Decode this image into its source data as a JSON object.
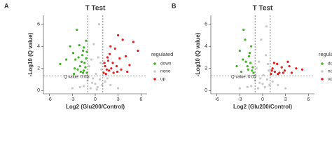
{
  "chart_data": [
    {
      "type": "scatter",
      "panel_label": "A",
      "title": "T Test",
      "x_label": "Log2 (Glu200/Control)",
      "y_label": "-Log10 (Q value)",
      "xlim": [
        -6.8,
        6.8
      ],
      "ylim": [
        -0.3,
        6.8
      ],
      "xticks": [
        -6,
        -3,
        0,
        3,
        6
      ],
      "yticks": [
        0,
        2,
        4,
        6
      ],
      "vlines": [
        -1,
        1
      ],
      "hline": 1.3,
      "annotation": "Q value: 0.05",
      "legend_title": "regulated",
      "series": [
        {
          "name": "down",
          "color": "#3cb521",
          "x": [
            -3.3,
            -2.9,
            -2.6,
            -2.4,
            -2.2,
            -2.0,
            -1.8,
            -1.6,
            -1.5,
            -1.3,
            -1.2,
            -1.1,
            -2.7,
            -2.1,
            -1.7,
            -1.4,
            -3.8,
            -4.6,
            -1.9,
            -2.3,
            -1.5,
            -1.2,
            -2.8,
            -1.6,
            -1.1
          ],
          "y": [
            4.0,
            3.4,
            2.8,
            5.5,
            3.0,
            2.2,
            2.6,
            3.6,
            1.8,
            2.1,
            4.5,
            1.6,
            2.0,
            4.1,
            3.2,
            2.5,
            2.8,
            2.4,
            1.7,
            1.9,
            3.9,
            2.9,
            1.5,
            1.6,
            3.5
          ]
        },
        {
          "name": "none",
          "color": "#c8c8c8",
          "x": [
            -1.5,
            -1.0,
            -0.6,
            -0.3,
            0.0,
            0.3,
            0.6,
            0.9,
            1.3,
            -2.0,
            2.0,
            -0.8,
            0.4,
            -0.2,
            0.8,
            0.5,
            -0.5,
            0.1,
            -3.0,
            3.0,
            0.2,
            -0.4,
            0.7,
            -0.9,
            1.6
          ],
          "y": [
            0.4,
            0.9,
            0.2,
            1.1,
            0.6,
            0.3,
            1.0,
            0.5,
            0.8,
            0.3,
            0.5,
            2.2,
            3.0,
            4.2,
            1.9,
            6.0,
            2.8,
            1.5,
            0.2,
            0.2,
            0.1,
            0.7,
            2.5,
            1.2,
            1.1
          ]
        },
        {
          "name": "up",
          "color": "#e41a1c",
          "x": [
            1.1,
            1.3,
            1.5,
            1.7,
            1.9,
            2.1,
            2.3,
            2.6,
            2.9,
            3.2,
            3.6,
            4.0,
            4.5,
            5.0,
            5.6,
            1.4,
            1.8,
            2.4,
            2.8,
            3.4,
            1.2,
            2.0,
            3.0,
            4.2,
            1.6
          ],
          "y": [
            1.6,
            2.2,
            1.9,
            2.7,
            3.3,
            2.0,
            2.5,
            3.8,
            1.7,
            2.9,
            4.6,
            3.1,
            2.3,
            4.4,
            3.6,
            1.5,
            1.8,
            1.6,
            2.2,
            1.9,
            2.5,
            4.0,
            5.0,
            1.7,
            3.0
          ]
        }
      ]
    },
    {
      "type": "scatter",
      "panel_label": "B",
      "title": "T Test",
      "x_label": "Log2 (Glu200/Control)",
      "y_label": "-Log10 (Q value)",
      "xlim": [
        -6.8,
        6.8
      ],
      "ylim": [
        -0.3,
        6.8
      ],
      "xticks": [
        -6,
        -3,
        0,
        3,
        6
      ],
      "yticks": [
        0,
        2,
        4,
        6
      ],
      "vlines": [
        -1,
        1
      ],
      "hline": 1.3,
      "annotation": "Q value: 0.05",
      "legend_title": "regulated",
      "series": [
        {
          "name": "down",
          "color": "#3cb521",
          "x": [
            -3.0,
            -2.6,
            -2.3,
            -2.0,
            -1.8,
            -1.6,
            -1.4,
            -1.2,
            -2.5,
            -1.9,
            -1.5,
            -3.4,
            -2.2,
            -1.3,
            -1.7,
            -2.8
          ],
          "y": [
            3.6,
            2.8,
            4.6,
            2.2,
            3.1,
            2.5,
            1.8,
            1.6,
            5.5,
            1.9,
            4.0,
            2.2,
            2.6,
            2.1,
            3.4,
            1.7
          ]
        },
        {
          "name": "none",
          "color": "#c8c8c8",
          "x": [
            -1.5,
            -1.0,
            -0.6,
            -0.3,
            0.0,
            0.3,
            0.6,
            0.9,
            1.3,
            -2.0,
            2.0,
            -0.8,
            0.4,
            -0.2,
            0.8,
            0.5,
            -0.5,
            0.1,
            -3.0,
            3.0,
            -0.4,
            0.7
          ],
          "y": [
            0.4,
            0.9,
            0.2,
            1.1,
            0.6,
            0.3,
            1.0,
            0.5,
            0.8,
            0.3,
            0.5,
            2.0,
            3.2,
            4.6,
            1.8,
            5.8,
            2.6,
            1.4,
            0.2,
            0.2,
            0.7,
            2.4
          ]
        },
        {
          "name": "up",
          "color": "#e41a1c",
          "x": [
            1.1,
            1.3,
            1.6,
            1.9,
            2.2,
            2.5,
            2.9,
            3.3,
            3.8,
            4.4,
            5.2,
            1.5,
            2.0,
            2.7,
            3.5,
            1.2
          ],
          "y": [
            1.5,
            2.0,
            1.7,
            2.4,
            1.6,
            2.1,
            1.8,
            2.6,
            1.6,
            2.0,
            1.9,
            2.5,
            1.5,
            1.6,
            2.2,
            1.8
          ]
        }
      ]
    }
  ]
}
